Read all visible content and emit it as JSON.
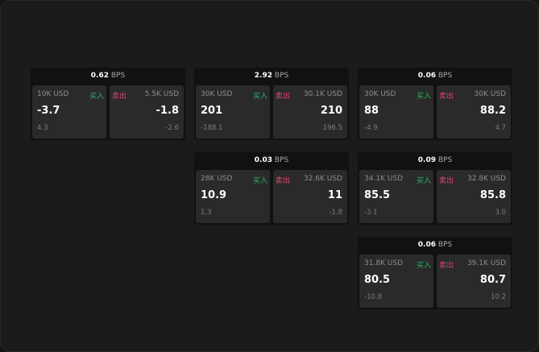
{
  "colors": {
    "buy": "#2fb36b",
    "sell": "#e0456f",
    "background": "#1b1b1b"
  },
  "unit": "BPS",
  "panels": [
    {
      "spread": "0.62",
      "buy": {
        "amount": "10K USD",
        "label": "买入",
        "price": "-3.7",
        "change": "4.3"
      },
      "sell": {
        "amount": "5.5K USD",
        "label": "卖出",
        "price": "-1.8",
        "change": "-2.6"
      }
    },
    {
      "spread": "2.92",
      "buy": {
        "amount": "30K USD",
        "label": "买入",
        "price": "201",
        "change": "-188.1"
      },
      "sell": {
        "amount": "30.1K USD",
        "label": "卖出",
        "price": "210",
        "change": "196.5"
      }
    },
    {
      "spread": "0.06",
      "buy": {
        "amount": "30K USD",
        "label": "买入",
        "price": "88",
        "change": "-4.9"
      },
      "sell": {
        "amount": "30K USD",
        "label": "卖出",
        "price": "88.2",
        "change": "4.7"
      }
    },
    {
      "spread": "0.03",
      "buy": {
        "amount": "28K USD",
        "label": "买入",
        "price": "10.9",
        "change": "1.3"
      },
      "sell": {
        "amount": "32.6K USD",
        "label": "卖出",
        "price": "11",
        "change": "-1.8"
      }
    },
    {
      "spread": "0.09",
      "buy": {
        "amount": "34.1K USD",
        "label": "买入",
        "price": "85.5",
        "change": "-3.1"
      },
      "sell": {
        "amount": "32.8K USD",
        "label": "卖出",
        "price": "85.8",
        "change": "3.0"
      }
    },
    {
      "spread": "0.06",
      "buy": {
        "amount": "31.8K USD",
        "label": "买入",
        "price": "80.5",
        "change": "-10.8"
      },
      "sell": {
        "amount": "39.1K USD",
        "label": "卖出",
        "price": "80.7",
        "change": "10.2"
      }
    }
  ]
}
